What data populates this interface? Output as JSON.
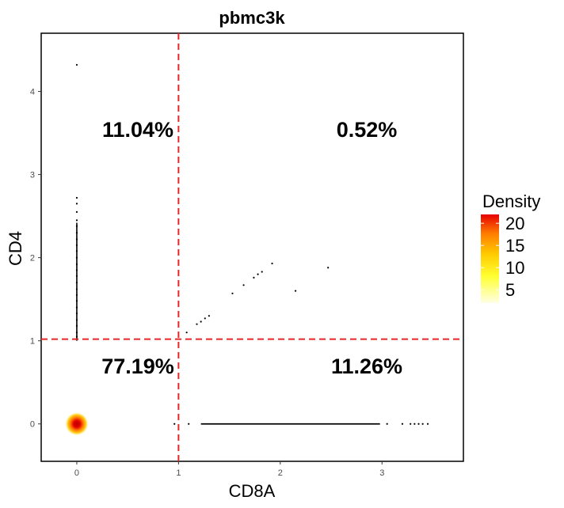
{
  "chart_data": {
    "type": "scatter",
    "title": "pbmc3k",
    "xlabel": "CD8A",
    "ylabel": "CD4",
    "xlim": [
      -0.35,
      3.8
    ],
    "ylim": [
      -0.45,
      4.7
    ],
    "x_ticks": [
      0,
      1,
      2,
      3
    ],
    "y_ticks": [
      0,
      1,
      2,
      3,
      4
    ],
    "grid": false,
    "gates": {
      "x": 1.0,
      "y": 1.02,
      "color": "#e8262a",
      "style": "dashed"
    },
    "quadrant_percentages": [
      {
        "quadrant": "upper-left",
        "label": "11.04%",
        "x": 0.6,
        "y": 3.55
      },
      {
        "quadrant": "upper-right",
        "label": "0.52%",
        "x": 2.85,
        "y": 3.55
      },
      {
        "quadrant": "lower-left",
        "label": "77.19%",
        "x": 0.6,
        "y": 0.7
      },
      {
        "quadrant": "lower-right",
        "label": "11.26%",
        "x": 2.85,
        "y": 0.7
      }
    ],
    "density_hotspot": {
      "x": 0,
      "y": 0,
      "max_density": 22
    },
    "points_upper_left": [
      [
        0,
        4.32
      ],
      [
        0,
        2.72
      ],
      [
        0,
        2.65
      ],
      [
        0,
        2.55
      ],
      [
        0,
        2.45
      ],
      [
        0,
        2.38
      ],
      [
        0,
        2.3
      ],
      [
        0,
        2.22
      ],
      [
        0,
        2.15
      ],
      [
        0,
        2.08
      ],
      [
        0,
        2.0
      ],
      [
        0,
        1.92
      ],
      [
        0,
        1.85
      ],
      [
        0,
        1.78
      ],
      [
        0,
        1.7
      ],
      [
        0,
        1.62
      ],
      [
        0,
        1.55
      ],
      [
        0,
        1.48
      ],
      [
        0,
        1.4
      ],
      [
        0,
        1.33
      ],
      [
        0,
        1.25
      ],
      [
        0,
        1.18
      ],
      [
        0,
        1.1
      ],
      [
        0,
        1.05
      ]
    ],
    "points_upper_right": [
      [
        1.08,
        1.1
      ],
      [
        1.18,
        1.2
      ],
      [
        1.22,
        1.23
      ],
      [
        1.26,
        1.27
      ],
      [
        1.3,
        1.3
      ],
      [
        1.53,
        1.57
      ],
      [
        1.64,
        1.67
      ],
      [
        1.74,
        1.76
      ],
      [
        1.78,
        1.8
      ],
      [
        1.82,
        1.83
      ],
      [
        1.92,
        1.93
      ],
      [
        2.15,
        1.6
      ],
      [
        2.47,
        1.88
      ]
    ],
    "points_lower_right": [
      [
        0.96,
        0.0
      ],
      [
        1.1,
        0.0
      ],
      [
        3.05,
        0.0
      ],
      [
        3.2,
        0.0
      ],
      [
        3.28,
        0.0
      ],
      [
        3.32,
        0.0
      ],
      [
        3.36,
        0.0
      ],
      [
        3.4,
        0.0
      ],
      [
        3.45,
        0.0
      ]
    ],
    "lower_right_band": {
      "x_start": 1.22,
      "x_end": 2.98,
      "y": 0.0
    },
    "legend": {
      "title": "Density",
      "position": "right",
      "labels": [
        {
          "text": "20",
          "value": 20
        },
        {
          "text": "15",
          "value": 15
        },
        {
          "text": "10",
          "value": 10
        },
        {
          "text": "5",
          "value": 5
        }
      ],
      "range": [
        2,
        22
      ],
      "colors": [
        "#ffffe6",
        "#ffff33",
        "#ffcc00",
        "#ff7f00",
        "#e60000"
      ]
    }
  }
}
